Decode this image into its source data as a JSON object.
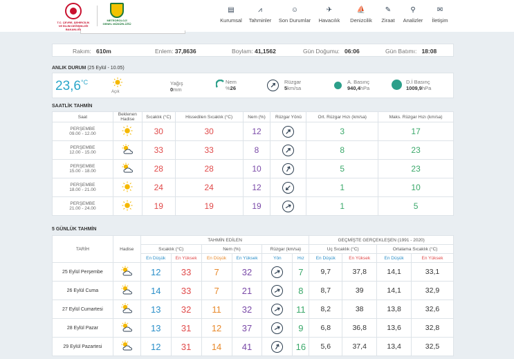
{
  "header": {
    "logo1_text": "T.C. ÇEVRE, ŞEHİRCİLİK VE İKLİM DEĞİŞİKLİĞİ BAKANLIĞI",
    "logo2_text": "METEOROLOJİ GENEL MÜDÜRLÜĞÜ",
    "nav": [
      {
        "label": "Kurumsal",
        "icon": "▤"
      },
      {
        "label": "Tahminler",
        "icon": "⩘"
      },
      {
        "label": "Son Durumlar",
        "icon": "☺"
      },
      {
        "label": "Havacılık",
        "icon": "✈"
      },
      {
        "label": "Denizcilik",
        "icon": "⛵"
      },
      {
        "label": "Ziraat",
        "icon": "✎"
      },
      {
        "label": "Analizler",
        "icon": "⚲"
      },
      {
        "label": "İletişim",
        "icon": "✉"
      }
    ]
  },
  "info": {
    "rakim_label": "Rakım:",
    "rakim": "610m",
    "enlem_label": "Enlem:",
    "enlem": "37,8636",
    "boylam_label": "Boylam:",
    "boylam": "41,1562",
    "gundogumu_label": "Gün Doğumu:",
    "gundogumu": "06:06",
    "gunbatimi_label": "Gün Batımı:",
    "gunbatimi": "18:08"
  },
  "current": {
    "title": "ANLIK DURUM",
    "time": "(25 Eylül - 10.05)",
    "temp": "23,6",
    "unit": "°C",
    "condition": "Açık",
    "yagis_label": "Yağış",
    "yagis": "0",
    "yagis_unit": "mm",
    "nem_label": "Nem",
    "nem_unit": "%",
    "nem": "26",
    "ruzgar_label": "Rüzgar",
    "ruzgar": "5",
    "ruzgar_unit": "km/sa",
    "abasinc_label": "A. Basınç",
    "abasinc": "940,4",
    "abasinc_unit": "hPa",
    "dibasinc_label": "D.İ Basınç",
    "dibasinc": "1009,9",
    "dibasinc_unit": "hPa"
  },
  "hourly": {
    "title": "SAATLİK TAHMİN",
    "headers": [
      "Saat",
      "Beklenen Hadise",
      "Sıcaklık (°C)",
      "Hissedilen Sıcaklık (°C)",
      "Nem (%)",
      "Rüzgar Yönü",
      "Ort. Rüzgar Hızı (km/sa)",
      "Maks. Rüzgar Hızı (km/sa)"
    ],
    "rows": [
      {
        "day": "PERŞEMBE",
        "time": "09.00 - 12.00",
        "icon": "sun",
        "temp": "30",
        "feels": "30",
        "nem": "12",
        "wind_deg": 45,
        "avg": "3",
        "max": "17"
      },
      {
        "day": "PERŞEMBE",
        "time": "12.00 - 15.00",
        "icon": "partly-cloudy",
        "temp": "33",
        "feels": "33",
        "nem": "8",
        "wind_deg": 45,
        "avg": "8",
        "max": "23"
      },
      {
        "day": "PERŞEMBE",
        "time": "15.00 - 18.00",
        "icon": "partly-cloudy",
        "temp": "28",
        "feels": "28",
        "nem": "10",
        "wind_deg": 30,
        "avg": "5",
        "max": "23"
      },
      {
        "day": "PERŞEMBE",
        "time": "18.00 - 21.00",
        "icon": "sun",
        "temp": "24",
        "feels": "24",
        "nem": "12",
        "wind_deg": 225,
        "avg": "1",
        "max": "10"
      },
      {
        "day": "PERŞEMBE",
        "time": "21.00 - 24.00",
        "icon": "sun",
        "temp": "19",
        "feels": "19",
        "nem": "19",
        "wind_deg": 60,
        "avg": "1",
        "max": "5"
      }
    ]
  },
  "five": {
    "title": "5 GÜNLÜK TAHMİN",
    "h_tahmin": "TAHMİN EDİLEN",
    "h_gecmis": "GEÇMİŞTE GERÇEKLEŞEN (1991 - 2020)",
    "h_tarih": "TARİH",
    "h_hadise": "Hadise",
    "h_sicaklik": "Sıcaklık (°C)",
    "h_nem": "Nem (%)",
    "h_ruzgar": "Rüzgar (km/sa)",
    "h_uc": "Uç Sıcaklık (°C)",
    "h_ort": "Ortalama Sıcaklık (°C)",
    "low": "En Düşük",
    "high": "En Yüksek",
    "yon": "Yön",
    "hiz": "Hız",
    "rows": [
      {
        "date": "25 Eylül Perşembe",
        "tmin": "12",
        "tmax": "33",
        "nmin": "7",
        "nmax": "32",
        "wind_deg": 60,
        "hiz": "7",
        "umin": "9,7",
        "umax": "37,8",
        "omin": "14,1",
        "omax": "33,1"
      },
      {
        "date": "26 Eylül Cuma",
        "tmin": "14",
        "tmax": "33",
        "nmin": "7",
        "nmax": "21",
        "wind_deg": 60,
        "hiz": "8",
        "umin": "8,7",
        "umax": "39",
        "omin": "14,1",
        "omax": "32,9"
      },
      {
        "date": "27 Eylül Cumartesi",
        "tmin": "13",
        "tmax": "32",
        "nmin": "11",
        "nmax": "32",
        "wind_deg": 60,
        "hiz": "11",
        "umin": "8,2",
        "umax": "38",
        "omin": "13,8",
        "omax": "32,6"
      },
      {
        "date": "28 Eylül Pazar",
        "tmin": "13",
        "tmax": "31",
        "nmin": "12",
        "nmax": "37",
        "wind_deg": 60,
        "hiz": "9",
        "umin": "6,8",
        "umax": "36,8",
        "omin": "13,6",
        "omax": "32,8"
      },
      {
        "date": "29 Eylül Pazartesi",
        "tmin": "12",
        "tmax": "31",
        "nmin": "14",
        "nmax": "41",
        "wind_deg": 30,
        "hiz": "16",
        "umin": "5,6",
        "umax": "37,4",
        "omin": "13,4",
        "omax": "32,5"
      }
    ]
  }
}
